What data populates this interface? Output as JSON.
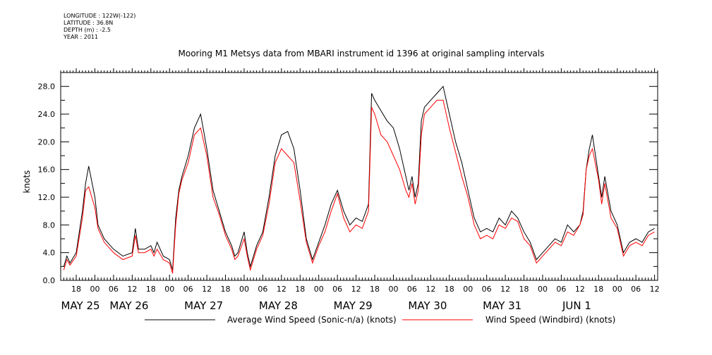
{
  "meta": {
    "longitude": "LONGITUDE : 122W(-122)",
    "latitude": "LATITUDE : 36.8N",
    "depth": "DEPTH (m) : -2.5",
    "year": "YEAR : 2011"
  },
  "chart_data": {
    "type": "line",
    "title": "Mooring M1 Metsys data from MBARI instrument id 1396 at original sampling intervals",
    "xlabel": "",
    "ylabel": "knots",
    "x_unit": "hours since 2011-05-25 00:00",
    "xlim": [
      13,
      205
    ],
    "ylim": [
      0,
      30
    ],
    "y_ticks": [
      0,
      4,
      8,
      12,
      16,
      20,
      24,
      28
    ],
    "y_tick_labels": [
      "0.0",
      "4.0",
      "8.0",
      "12.0",
      "16.0",
      "20.0",
      "24.0",
      "28.0"
    ],
    "x_hour_ticks": [
      18,
      0,
      6,
      12,
      18,
      0,
      6,
      12,
      18,
      0,
      6,
      12,
      18,
      0,
      6,
      12,
      18,
      0,
      6,
      12,
      18,
      0,
      6,
      12,
      18,
      0,
      6,
      12,
      18,
      0,
      6,
      12
    ],
    "x_day_labels": [
      "MAY 25",
      "MAY 26",
      "MAY 27",
      "MAY 28",
      "MAY 29",
      "MAY 30",
      "MAY 31",
      "JUN 1"
    ],
    "grid": false,
    "legend": "bottom",
    "x": [
      14,
      15,
      16,
      18,
      20,
      21,
      22,
      24,
      25,
      27,
      30,
      33,
      36,
      37,
      38,
      40,
      42,
      43,
      44,
      46,
      48,
      49,
      50,
      51,
      52,
      54,
      56,
      58,
      60,
      62,
      64,
      66,
      68,
      69,
      70,
      72,
      73,
      74,
      76,
      78,
      80,
      82,
      84,
      86,
      88,
      90,
      92,
      94,
      96,
      98,
      100,
      102,
      104,
      106,
      108,
      110,
      112,
      113,
      114,
      116,
      118,
      120,
      122,
      124,
      125,
      126,
      127,
      128,
      129,
      130,
      132,
      134,
      136,
      138,
      140,
      142,
      144,
      146,
      147,
      148,
      150,
      152,
      154,
      156,
      158,
      160,
      162,
      164,
      166,
      168,
      170,
      172,
      174,
      176,
      178,
      180,
      181,
      182,
      183,
      184,
      186,
      187,
      188,
      190,
      192,
      194,
      196,
      198,
      200,
      202,
      204
    ],
    "series": [
      {
        "name": "Average Wind Speed (Sonic-n/a) (knots)",
        "color": "#000000",
        "values": [
          2.0,
          3.5,
          2.5,
          4.0,
          10.0,
          14.0,
          16.5,
          12.0,
          8.0,
          6.0,
          4.5,
          3.5,
          4.0,
          7.5,
          4.5,
          4.5,
          5.0,
          4.0,
          5.5,
          3.5,
          3.0,
          1.5,
          9.0,
          13.0,
          15.0,
          18.0,
          22.0,
          24.0,
          19.0,
          13.0,
          10.0,
          7.0,
          5.0,
          3.5,
          4.0,
          7.0,
          4.0,
          2.0,
          5.0,
          7.0,
          12.0,
          18.0,
          21.0,
          21.5,
          19.0,
          13.0,
          6.0,
          3.0,
          5.5,
          8.0,
          11.0,
          13.0,
          10.0,
          8.0,
          9.0,
          8.5,
          11.0,
          27.0,
          26.0,
          24.5,
          23.0,
          22.0,
          19.0,
          15.0,
          13.0,
          15.0,
          12.0,
          14.0,
          23.0,
          25.0,
          26.0,
          27.0,
          28.0,
          24.0,
          20.0,
          17.0,
          13.0,
          9.0,
          8.0,
          7.0,
          7.5,
          7.0,
          9.0,
          8.0,
          10.0,
          9.0,
          7.0,
          5.5,
          3.0,
          4.0,
          5.0,
          6.0,
          5.5,
          8.0,
          7.0,
          8.0,
          10.0,
          16.0,
          19.0,
          21.0,
          15.0,
          12.0,
          15.0,
          10.0,
          8.0,
          4.0,
          5.5,
          6.0,
          5.5,
          7.0,
          7.5
        ]
      },
      {
        "name": "Wind Speed (Windbird) (knots)",
        "color": "#ff0000",
        "values": [
          1.5,
          3.0,
          2.2,
          3.5,
          9.0,
          13.0,
          13.5,
          10.5,
          7.5,
          5.5,
          4.0,
          3.0,
          3.5,
          6.5,
          4.0,
          4.0,
          4.5,
          3.5,
          4.5,
          3.0,
          2.5,
          1.0,
          8.0,
          12.5,
          14.5,
          17.0,
          21.0,
          22.0,
          18.0,
          12.0,
          9.5,
          6.5,
          4.5,
          3.0,
          3.5,
          6.0,
          3.5,
          1.5,
          4.5,
          6.5,
          11.0,
          17.0,
          19.0,
          18.0,
          17.0,
          11.5,
          5.5,
          2.5,
          5.0,
          7.0,
          10.0,
          12.5,
          9.0,
          7.0,
          8.0,
          7.5,
          10.0,
          25.0,
          24.0,
          21.0,
          20.0,
          18.0,
          16.0,
          13.0,
          12.0,
          14.0,
          11.0,
          13.0,
          21.0,
          24.0,
          25.0,
          26.0,
          26.0,
          22.0,
          18.5,
          15.0,
          12.0,
          8.0,
          7.0,
          6.0,
          6.5,
          6.0,
          8.0,
          7.5,
          9.0,
          8.5,
          6.0,
          5.0,
          2.5,
          3.5,
          4.5,
          5.5,
          5.0,
          7.0,
          6.5,
          8.0,
          9.5,
          16.0,
          18.0,
          19.0,
          14.5,
          11.0,
          14.0,
          9.0,
          7.5,
          3.5,
          5.0,
          5.5,
          5.0,
          6.5,
          7.0
        ]
      }
    ]
  }
}
